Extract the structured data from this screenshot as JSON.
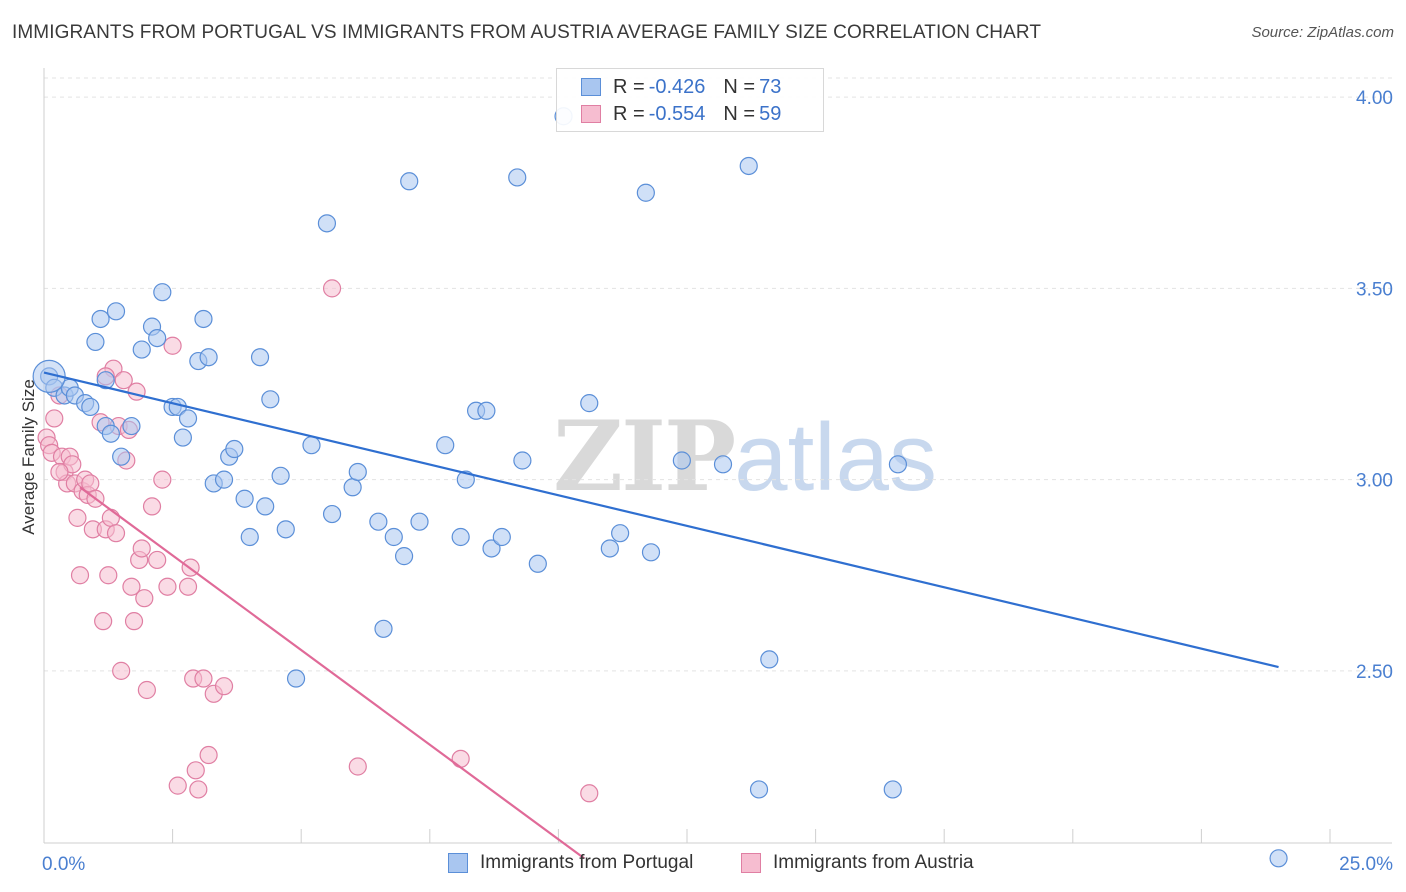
{
  "title": "IMMIGRANTS FROM PORTUGAL VS IMMIGRANTS FROM AUSTRIA AVERAGE FAMILY SIZE CORRELATION CHART",
  "source": "Source: ZipAtlas.com",
  "watermark": {
    "zip": "ZIP",
    "atlas": "atlas"
  },
  "legend": {
    "rows": [
      {
        "r_label": "R = ",
        "r_value": "-0.426",
        "n_label": "N = ",
        "n_value": "73"
      },
      {
        "r_label": "R = ",
        "r_value": "-0.554",
        "n_label": "N = ",
        "n_value": "59"
      }
    ]
  },
  "bottom_legend": [
    {
      "label": "Immigrants from Portugal"
    },
    {
      "label": "Immigrants from Austria"
    }
  ],
  "colors": {
    "portugal_fill": "#a9c6f0",
    "portugal_stroke": "#5b8fd8",
    "portugal_line": "#2f6fd0",
    "austria_fill": "#f6bdd0",
    "austria_stroke": "#e07fa3",
    "austria_line": "#e06a98",
    "grid": "#e3e3e3",
    "tick_text": "#4a7fd0"
  },
  "chart_data": {
    "type": "scatter",
    "title": "IMMIGRANTS FROM PORTUGAL VS IMMIGRANTS FROM AUSTRIA AVERAGE FAMILY SIZE CORRELATION CHART",
    "xlabel": "",
    "ylabel": "Average Family Size",
    "xlim": [
      0,
      25
    ],
    "ylim": [
      2.05,
      4.05
    ],
    "x_tick_labels": [
      "0.0%",
      "25.0%"
    ],
    "y_ticks": [
      2.5,
      3.0,
      3.5,
      4.0
    ],
    "y_tick_labels": [
      "2.50",
      "3.00",
      "3.50",
      "4.00"
    ],
    "grid": true,
    "legend_position": "top-center",
    "series": [
      {
        "name": "Immigrants from Portugal",
        "R": -0.426,
        "N": 73,
        "trend": {
          "x": [
            0,
            24.0
          ],
          "y": [
            3.28,
            2.51
          ]
        },
        "points": [
          [
            0.1,
            3.27
          ],
          [
            0.2,
            3.24
          ],
          [
            0.4,
            3.22
          ],
          [
            0.5,
            3.24
          ],
          [
            0.6,
            3.22
          ],
          [
            0.8,
            3.2
          ],
          [
            0.9,
            3.19
          ],
          [
            1.0,
            3.36
          ],
          [
            1.1,
            3.42
          ],
          [
            1.2,
            3.14
          ],
          [
            1.2,
            3.26
          ],
          [
            1.3,
            3.12
          ],
          [
            1.4,
            3.44
          ],
          [
            1.5,
            3.06
          ],
          [
            1.7,
            3.14
          ],
          [
            1.9,
            3.34
          ],
          [
            2.1,
            3.4
          ],
          [
            2.2,
            3.37
          ],
          [
            2.3,
            3.49
          ],
          [
            2.5,
            3.19
          ],
          [
            2.6,
            3.19
          ],
          [
            2.7,
            3.11
          ],
          [
            2.8,
            3.16
          ],
          [
            3.0,
            3.31
          ],
          [
            3.1,
            3.42
          ],
          [
            3.2,
            3.32
          ],
          [
            3.3,
            2.99
          ],
          [
            3.5,
            3.0
          ],
          [
            3.6,
            3.06
          ],
          [
            3.7,
            3.08
          ],
          [
            3.9,
            2.95
          ],
          [
            4.0,
            2.85
          ],
          [
            4.2,
            3.32
          ],
          [
            4.3,
            2.93
          ],
          [
            4.4,
            3.21
          ],
          [
            4.6,
            3.01
          ],
          [
            4.7,
            2.87
          ],
          [
            4.9,
            2.48
          ],
          [
            5.2,
            3.09
          ],
          [
            5.5,
            3.67
          ],
          [
            5.6,
            2.91
          ],
          [
            6.0,
            2.98
          ],
          [
            6.1,
            3.02
          ],
          [
            6.5,
            2.89
          ],
          [
            6.6,
            2.61
          ],
          [
            6.8,
            2.85
          ],
          [
            7.0,
            2.8
          ],
          [
            7.1,
            3.78
          ],
          [
            7.3,
            2.89
          ],
          [
            7.8,
            3.09
          ],
          [
            8.1,
            2.85
          ],
          [
            8.2,
            3.0
          ],
          [
            8.4,
            3.18
          ],
          [
            8.6,
            3.18
          ],
          [
            8.7,
            2.82
          ],
          [
            8.9,
            2.85
          ],
          [
            9.2,
            3.79
          ],
          [
            9.3,
            3.05
          ],
          [
            9.6,
            2.78
          ],
          [
            10.1,
            3.95
          ],
          [
            10.6,
            3.2
          ],
          [
            11.0,
            2.82
          ],
          [
            11.2,
            2.86
          ],
          [
            11.7,
            3.75
          ],
          [
            11.8,
            2.81
          ],
          [
            12.4,
            3.05
          ],
          [
            13.2,
            3.04
          ],
          [
            13.7,
            3.82
          ],
          [
            14.1,
            2.53
          ],
          [
            13.9,
            2.19
          ],
          [
            16.6,
            3.04
          ],
          [
            16.5,
            2.19
          ],
          [
            24.0,
            2.01
          ]
        ]
      },
      {
        "name": "Immigrants from Austria",
        "R": -0.554,
        "N": 59,
        "trend": {
          "x": [
            0.7,
            10.5
          ],
          "y": [
            2.98,
            2.01
          ]
        },
        "points": [
          [
            0.05,
            3.11
          ],
          [
            0.1,
            3.09
          ],
          [
            0.15,
            3.07
          ],
          [
            0.2,
            3.16
          ],
          [
            0.3,
            3.22
          ],
          [
            0.35,
            3.06
          ],
          [
            0.4,
            3.02
          ],
          [
            0.45,
            2.99
          ],
          [
            0.5,
            3.06
          ],
          [
            0.55,
            3.04
          ],
          [
            0.6,
            2.99
          ],
          [
            0.65,
            2.9
          ],
          [
            0.7,
            2.75
          ],
          [
            0.75,
            2.97
          ],
          [
            0.8,
            3.0
          ],
          [
            0.85,
            2.96
          ],
          [
            0.9,
            2.99
          ],
          [
            0.95,
            2.87
          ],
          [
            1.0,
            2.95
          ],
          [
            1.1,
            3.15
          ],
          [
            1.15,
            2.63
          ],
          [
            1.2,
            2.87
          ],
          [
            1.25,
            2.75
          ],
          [
            1.3,
            2.9
          ],
          [
            1.35,
            3.29
          ],
          [
            1.4,
            2.86
          ],
          [
            1.45,
            3.14
          ],
          [
            1.5,
            2.5
          ],
          [
            1.55,
            3.26
          ],
          [
            1.6,
            3.05
          ],
          [
            1.65,
            3.13
          ],
          [
            1.7,
            2.72
          ],
          [
            1.75,
            2.63
          ],
          [
            1.8,
            3.23
          ],
          [
            1.85,
            2.79
          ],
          [
            1.9,
            2.82
          ],
          [
            1.95,
            2.69
          ],
          [
            2.0,
            2.45
          ],
          [
            2.1,
            2.93
          ],
          [
            2.2,
            2.79
          ],
          [
            2.3,
            3.0
          ],
          [
            2.4,
            2.72
          ],
          [
            2.5,
            3.35
          ],
          [
            2.6,
            2.2
          ],
          [
            2.8,
            2.72
          ],
          [
            2.85,
            2.77
          ],
          [
            2.9,
            2.48
          ],
          [
            2.95,
            2.24
          ],
          [
            3.0,
            2.19
          ],
          [
            3.1,
            2.48
          ],
          [
            3.2,
            2.28
          ],
          [
            3.3,
            2.44
          ],
          [
            3.5,
            2.46
          ],
          [
            5.6,
            3.5
          ],
          [
            6.1,
            2.25
          ],
          [
            8.1,
            2.27
          ],
          [
            10.6,
            2.18
          ],
          [
            1.2,
            3.27
          ],
          [
            0.3,
            3.02
          ]
        ]
      }
    ]
  }
}
